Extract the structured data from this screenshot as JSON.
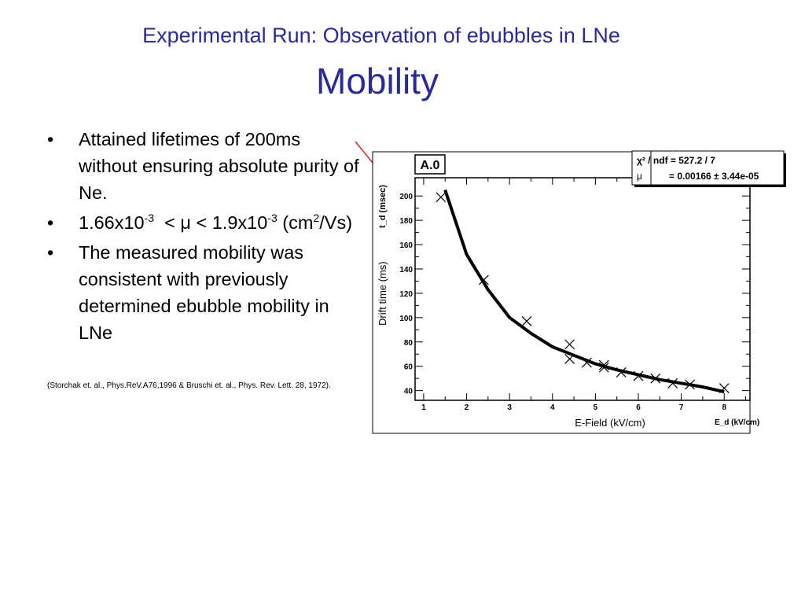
{
  "slide": {
    "title_line1": "Experimental Run: Observation of ebubbles in LNe",
    "title_line2": "Mobility",
    "bullets": [
      {
        "text": "Attained lifetimes of 200ms without ensuring absolute purity of Ne."
      },
      {
        "p1": "1.66x10",
        "s1": "-3",
        "p2": "  < μ < 1.9x10",
        "s2": "-3",
        "p3": " (cm",
        "s3": "2",
        "p4": "/Vs)"
      },
      {
        "text": "The measured mobility was consistent with previously determined ebubble mobility in LNe"
      }
    ],
    "reference": "(Storchak et. al., Phys.ReV.A76,1996  & Bruschi et. al., Phys. Rev. Lett. 28, 1972).",
    "bullet_symbol": "•",
    "title_color": "#2a2a99",
    "arrow_color": "#dd2222"
  },
  "chart_data": {
    "type": "scatter",
    "plot_label": "A.0",
    "stats": {
      "chi2_label": "χ² / ndf = 527.2 / 7",
      "mu_label": "μ",
      "mu_value": "= 0.00166 ± 3.44e-05"
    },
    "xlabel": "E-Field (kV/cm)",
    "xlabel_root": "E_d (kV/cm)",
    "ylabel": "Drift time (ms)",
    "ylabel_root": "t_d (msec)",
    "xlim": [
      0.8,
      8.6
    ],
    "ylim": [
      32,
      215
    ],
    "x_ticks": [
      1,
      2,
      3,
      4,
      5,
      6,
      7,
      8
    ],
    "y_ticks": [
      40,
      60,
      80,
      100,
      120,
      140,
      160,
      180,
      200
    ],
    "series": [
      {
        "marker": "x",
        "x": [
          1.4,
          2.4,
          3.4,
          4.4,
          4.4,
          4.8,
          5.2,
          5.2,
          5.6,
          6.0,
          6.4,
          6.8,
          7.2,
          8.0
        ],
        "y": [
          199,
          131,
          97,
          78,
          66,
          63,
          61,
          59,
          55,
          52,
          50,
          46,
          45,
          42
        ]
      },
      {
        "type": "fit",
        "x": [
          1.5,
          2.0,
          2.5,
          3.0,
          3.5,
          4.0,
          4.5,
          5.0,
          5.5,
          6.0,
          6.5,
          7.0,
          7.5,
          8.0
        ],
        "y": [
          205,
          152,
          123,
          100,
          87,
          76,
          69,
          62,
          57,
          53,
          49,
          46,
          43,
          39
        ]
      }
    ]
  }
}
